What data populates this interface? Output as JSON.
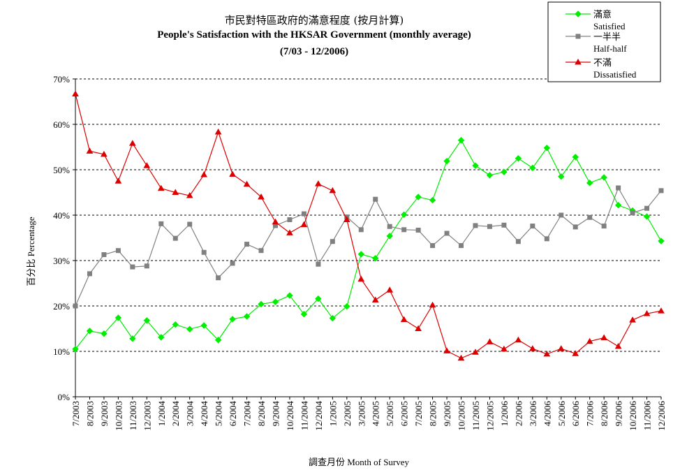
{
  "chart_data": {
    "type": "line",
    "title": "市民對特區政府的滿意程度 (按月計算)",
    "subtitle": "People's Satisfaction with the HKSAR Government (monthly average)",
    "period": "(7/03 - 12/2006)",
    "xlabel": "調查月份 Month of Survey",
    "ylabel": "百分比 Percentage",
    "ylim": [
      0,
      70
    ],
    "yticks": [
      "0%",
      "10%",
      "20%",
      "30%",
      "40%",
      "50%",
      "60%",
      "70%"
    ],
    "grid": true,
    "legend_position": "top-right",
    "categories": [
      "7/2003",
      "8/2003",
      "9/2003",
      "10/2003",
      "11/2003",
      "12/2003",
      "1/2004",
      "2/2004",
      "3/2004",
      "4/2004",
      "5/2004",
      "6/2004",
      "7/2004",
      "8/2004",
      "9/2004",
      "10/2004",
      "11/2004",
      "12/2004",
      "1/2005",
      "2/2005",
      "3/2005",
      "4/2005",
      "5/2005",
      "6/2005",
      "7/2005",
      "8/2005",
      "9/2005",
      "10/2005",
      "11/2005",
      "12/2005",
      "1/2006",
      "2/2006",
      "3/2006",
      "4/2006",
      "5/2006",
      "6/2006",
      "7/2006",
      "8/2006",
      "9/2006",
      "10/2006",
      "11/2006",
      "12/2006"
    ],
    "series": [
      {
        "name": "滿意",
        "name_en": "Satisfied",
        "color": "#00ee00",
        "marker": "diamond",
        "values": [
          10.5,
          14.5,
          13.9,
          17.4,
          12.8,
          16.8,
          13.1,
          15.9,
          14.9,
          15.7,
          12.5,
          17.1,
          17.7,
          20.4,
          20.9,
          22.3,
          18.2,
          21.6,
          17.3,
          19.9,
          31.4,
          30.5,
          35.4,
          40.1,
          44.0,
          43.3,
          51.9,
          56.5,
          50.9,
          48.8,
          49.5,
          52.5,
          50.4,
          54.8,
          48.5,
          52.8,
          47.1,
          48.3,
          42.2,
          41.0,
          39.7,
          34.3
        ]
      },
      {
        "name": "一半半",
        "name_en": "Half-half",
        "color": "#808080",
        "marker": "square",
        "values": [
          20.0,
          27.1,
          31.3,
          32.2,
          28.6,
          28.8,
          38.1,
          34.9,
          38.0,
          31.8,
          26.2,
          29.4,
          33.6,
          32.2,
          37.7,
          39.0,
          40.3,
          29.2,
          34.2,
          39.6,
          36.8,
          43.5,
          37.5,
          36.8,
          36.7,
          33.3,
          36.0,
          33.3,
          37.7,
          37.5,
          37.8,
          34.2,
          37.6,
          34.8,
          40.0,
          37.4,
          39.5,
          37.6,
          46.0,
          40.5,
          41.5,
          45.4
        ]
      },
      {
        "name": "不滿",
        "name_en": "Dissatisfied",
        "color": "#dd0000",
        "marker": "triangle",
        "values": [
          66.7,
          54.1,
          53.4,
          47.5,
          55.8,
          50.9,
          45.9,
          45.0,
          44.3,
          48.9,
          58.3,
          49.0,
          46.8,
          44.0,
          38.5,
          36.1,
          37.9,
          46.9,
          45.4,
          39.0,
          25.9,
          21.3,
          23.5,
          17.0,
          15.0,
          20.2,
          10.1,
          8.5,
          9.8,
          12.1,
          10.5,
          12.5,
          10.6,
          9.4,
          10.6,
          9.5,
          12.2,
          13.0,
          11.1,
          16.9,
          18.3,
          18.9
        ]
      }
    ]
  }
}
